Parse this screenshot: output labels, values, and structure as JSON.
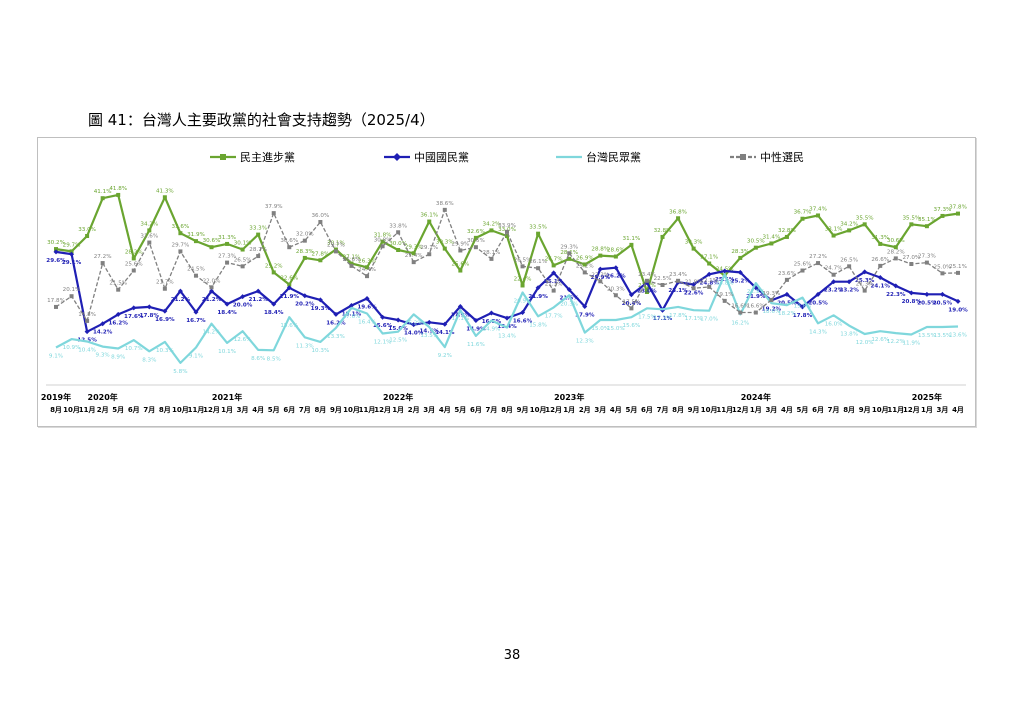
{
  "figure_title": "圖 41：台灣人主要政黨的社會支持趨勢（2025/4）",
  "page_number": "38",
  "chart_data": {
    "type": "line",
    "x": [
      "2019年8月",
      "10月",
      "11月",
      "2020年2月",
      "5月",
      "6月",
      "7月",
      "8月",
      "10月",
      "11月",
      "12月",
      "2021年1月",
      "3月",
      "4月",
      "5月",
      "6月",
      "7月",
      "8月",
      "9月",
      "10月",
      "11月",
      "12月",
      "2022年1月",
      "2月",
      "3月",
      "4月",
      "5月",
      "6月",
      "7月",
      "8月",
      "9月",
      "10月",
      "12月",
      "2023年1月",
      "2月",
      "3月",
      "4月",
      "5月",
      "6月",
      "7月",
      "8月",
      "9月",
      "10月",
      "11月",
      "12月",
      "2024年1月",
      "3月",
      "4月",
      "5月",
      "6月",
      "7月",
      "8月",
      "9月",
      "10月",
      "11月",
      "12月",
      "2025年1月",
      "3月",
      "4月"
    ],
    "year_labels": [
      "2019年",
      "2020年",
      "2021年",
      "2022年",
      "2023年",
      "2024年",
      "2025年"
    ],
    "month_labels": [
      "8月",
      "10月",
      "11月",
      "2月",
      "5月",
      "6月",
      "7月",
      "8月",
      "10月",
      "11月",
      "12月",
      "1月",
      "3月",
      "4月",
      "5月",
      "6月",
      "7月",
      "8月",
      "9月",
      "10月",
      "11月",
      "12月",
      "1月",
      "2月",
      "3月",
      "4月",
      "5月",
      "6月",
      "7月",
      "8月",
      "9月",
      "10月",
      "12月",
      "1月",
      "2月",
      "3月",
      "4月",
      "5月",
      "6月",
      "7月",
      "8月",
      "9月",
      "10月",
      "11月",
      "12月",
      "1月",
      "3月",
      "4月",
      "5月",
      "6月",
      "7月",
      "8月",
      "9月",
      "10月",
      "11月",
      "12月",
      "1月",
      "3月",
      "4月"
    ],
    "series": [
      {
        "name": "民主進步黨",
        "color": "#6aa530",
        "marker": "square",
        "dash": "solid",
        "values": [
          30.2,
          29.7,
          33.0,
          41.1,
          41.8,
          28.2,
          34.2,
          41.3,
          33.6,
          31.9,
          30.6,
          31.3,
          30.1,
          33.3,
          25.2,
          22.6,
          28.3,
          27.8,
          30.1,
          27.1,
          26.3,
          31.8,
          30.0,
          29.3,
          36.1,
          30.3,
          25.6,
          32.6,
          34.2,
          33.0,
          22.4,
          33.5,
          26.7,
          28.1,
          26.9,
          28.8,
          28.6,
          31.1,
          21.0,
          32.8,
          36.8,
          30.3,
          27.1,
          24.5,
          28.3,
          30.5,
          31.4,
          32.8,
          36.7,
          37.4,
          33.1,
          34.2,
          35.5,
          31.3,
          30.6,
          35.5,
          35.1,
          37.3,
          37.8
        ]
      },
      {
        "name": "中國國民黨",
        "color": "#1f1fb4",
        "marker": "diamond",
        "dash": "solid",
        "values": [
          29.6,
          29.1,
          12.5,
          14.2,
          16.2,
          17.6,
          17.8,
          16.9,
          21.2,
          16.7,
          21.2,
          18.4,
          20.0,
          21.2,
          18.4,
          21.9,
          20.2,
          19.3,
          16.2,
          18.1,
          19.6,
          15.6,
          15.0,
          14.0,
          14.5,
          14.1,
          17.9,
          14.9,
          16.5,
          15.4,
          16.6,
          21.9,
          25.1,
          21.5,
          17.9,
          25.9,
          26.2,
          20.4,
          23.0,
          17.1,
          23.1,
          22.6,
          24.8,
          25.5,
          25.2,
          21.9,
          19.2,
          20.5,
          17.8,
          20.5,
          23.2,
          23.2,
          25.3,
          24.1,
          22.3,
          20.8,
          20.5,
          20.5,
          19.0
        ]
      },
      {
        "name": "台灣民眾黨",
        "color": "#7fd7dc",
        "marker": "none",
        "dash": "solid",
        "values": [
          9.1,
          10.9,
          10.4,
          9.3,
          8.9,
          10.7,
          8.3,
          10.3,
          5.8,
          9.1,
          14.2,
          10.1,
          12.6,
          8.6,
          8.5,
          15.6,
          11.3,
          10.3,
          13.3,
          17.6,
          16.4,
          12.1,
          12.5,
          16.2,
          13.5,
          9.2,
          17.1,
          11.6,
          14.9,
          13.4,
          20.9,
          15.8,
          17.7,
          20.3,
          12.3,
          15.0,
          15.0,
          15.6,
          17.5,
          17.3,
          17.8,
          17.1,
          17.0,
          24.8,
          16.2,
          22.9,
          18.6,
          18.2,
          19.8,
          14.3,
          16.0,
          13.8,
          12.0,
          12.6,
          12.2,
          11.9,
          13.5,
          13.5,
          13.6
        ]
      },
      {
        "name": "中性選民",
        "color": "#808080",
        "marker": "square",
        "dash": "dashed",
        "values": [
          17.8,
          20.1,
          14.8,
          27.2,
          21.5,
          25.6,
          31.6,
          21.7,
          29.7,
          24.5,
          22.0,
          27.3,
          26.5,
          28.7,
          37.9,
          30.6,
          32.0,
          36.0,
          29.7,
          26.6,
          24.4,
          30.8,
          33.8,
          27.4,
          29.1,
          38.6,
          29.9,
          30.6,
          28.1,
          33.9,
          26.5,
          26.1,
          21.3,
          29.3,
          25.2,
          23.3,
          20.3,
          17.5,
          23.4,
          22.5,
          23.4,
          21.8,
          22.1,
          19.1,
          16.6,
          16.6,
          19.3,
          23.6,
          25.6,
          27.2,
          24.7,
          26.5,
          21.3,
          26.6,
          28.2,
          27.0,
          27.3,
          25.0,
          25.1
        ]
      }
    ],
    "legend_position": "top",
    "grid": false,
    "ylim": [
      0,
      50
    ]
  }
}
